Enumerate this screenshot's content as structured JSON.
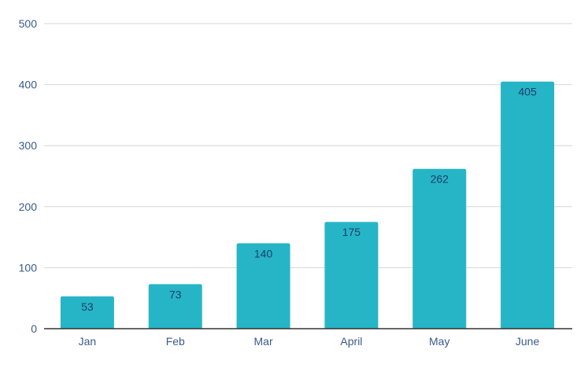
{
  "chart_data": {
    "type": "bar",
    "categories": [
      "Jan",
      "Feb",
      "Mar",
      "April",
      "May",
      "June"
    ],
    "values": [
      53,
      73,
      140,
      175,
      262,
      405
    ],
    "ylim": [
      0,
      500
    ],
    "yticks": [
      0,
      100,
      200,
      300,
      400,
      500
    ],
    "grid": true,
    "legend": "none",
    "colors": {
      "bar": "#26b5c6",
      "grid": "#d6d6d6",
      "axis": "#333333",
      "tick_label": "#3b5a8c",
      "data_label": "#1f3d6b"
    }
  }
}
